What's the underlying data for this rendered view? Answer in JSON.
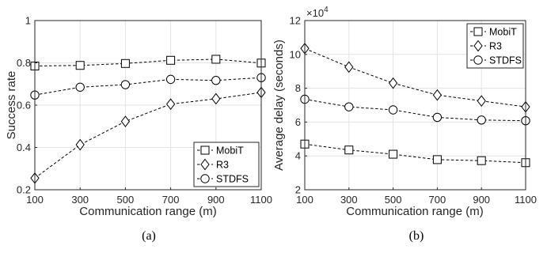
{
  "chart_data": [
    {
      "type": "line",
      "caption": "(a)",
      "xlabel": "Communication range (m)",
      "ylabel": "Success rate",
      "x": [
        100,
        300,
        500,
        700,
        900,
        1100
      ],
      "xlim": [
        100,
        1100
      ],
      "ylim": [
        0.2,
        1.0
      ],
      "xticks": [
        "100",
        "300",
        "500",
        "700",
        "900",
        "1100"
      ],
      "yticks": [
        "0.2",
        "0.4",
        "0.6",
        "0.8",
        "1"
      ],
      "grid": true,
      "legend_position": "bottom-right",
      "series": [
        {
          "name": "MobiT",
          "marker": "square",
          "values": [
            0.785,
            0.788,
            0.797,
            0.812,
            0.817,
            0.799
          ]
        },
        {
          "name": "R3",
          "marker": "diamond",
          "values": [
            0.255,
            0.413,
            0.523,
            0.605,
            0.63,
            0.66
          ]
        },
        {
          "name": "STDFS",
          "marker": "circle",
          "values": [
            0.648,
            0.685,
            0.697,
            0.722,
            0.717,
            0.73
          ]
        }
      ]
    },
    {
      "type": "line",
      "caption": "(b)",
      "xlabel": "Communication range (m)",
      "ylabel": "Average delay (seconds)",
      "exponent_label": "×10",
      "exponent_power": "4",
      "x": [
        100,
        300,
        500,
        700,
        900,
        1100
      ],
      "xlim": [
        100,
        1100
      ],
      "ylim": [
        2,
        12
      ],
      "xticks": [
        "100",
        "300",
        "500",
        "700",
        "900",
        "1100"
      ],
      "yticks": [
        "2",
        "4",
        "6",
        "8",
        "10",
        "12"
      ],
      "grid": true,
      "legend_position": "top-right",
      "series": [
        {
          "name": "MobiT",
          "marker": "square",
          "values": [
            4.7,
            4.35,
            4.1,
            3.78,
            3.72,
            3.6
          ]
        },
        {
          "name": "R3",
          "marker": "diamond",
          "values": [
            10.35,
            9.25,
            8.3,
            7.6,
            7.25,
            6.9
          ]
        },
        {
          "name": "STDFS",
          "marker": "circle",
          "values": [
            7.35,
            6.9,
            6.72,
            6.28,
            6.12,
            6.08
          ]
        }
      ]
    }
  ]
}
